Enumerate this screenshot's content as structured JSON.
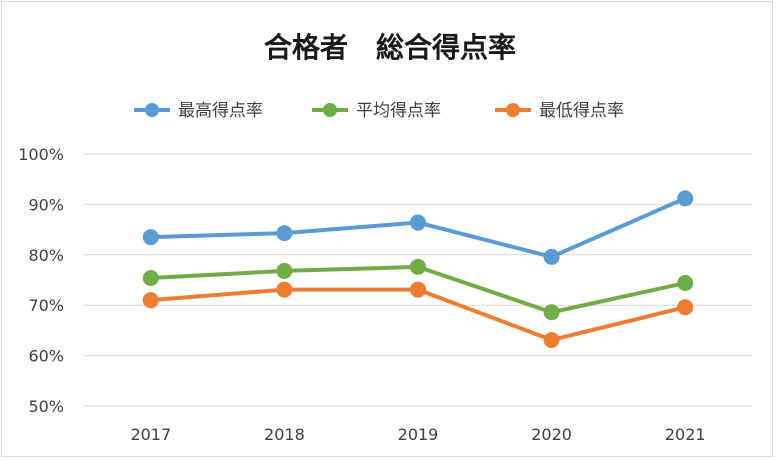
{
  "chart_data": {
    "type": "line",
    "title": "合格者　総合得点率",
    "xlabel": "",
    "ylabel": "",
    "categories": [
      "2017",
      "2018",
      "2019",
      "2020",
      "2021"
    ],
    "y_tick_labels": [
      "50%",
      "60%",
      "70%",
      "80%",
      "90%",
      "100%"
    ],
    "ylim": [
      50,
      100
    ],
    "y_unit": "%",
    "grid": true,
    "legend_position": "top",
    "series": [
      {
        "name": "最高得点率",
        "color": "#5b9bd5",
        "values": [
          83.5,
          84.3,
          86.4,
          79.6,
          91.2
        ]
      },
      {
        "name": "平均得点率",
        "color": "#70ad47",
        "values": [
          75.4,
          76.8,
          77.6,
          68.6,
          74.4
        ]
      },
      {
        "name": "最低得点率",
        "color": "#ed7d31",
        "values": [
          71.0,
          73.1,
          73.1,
          63.1,
          69.6
        ]
      }
    ]
  }
}
